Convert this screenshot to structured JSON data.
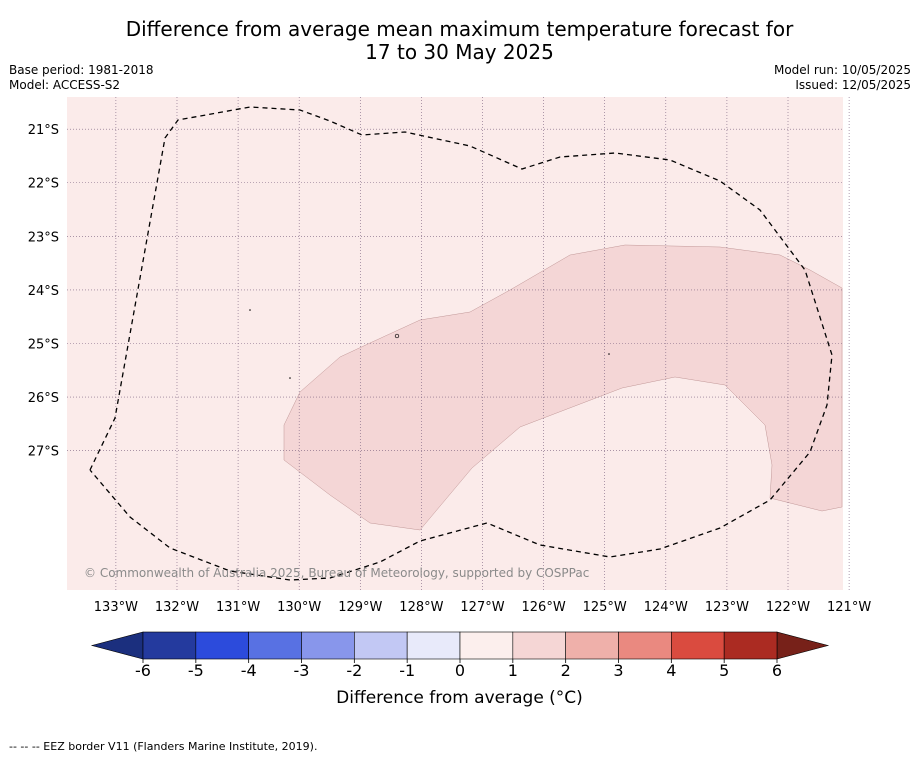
{
  "title": {
    "line1": "Difference from average mean maximum temperature forecast for",
    "line2": "17 to 30 May 2025"
  },
  "meta": {
    "base_period": "Base period: 1981-2018",
    "model": "Model: ACCESS-S2",
    "model_run": "Model run: 10/05/2025",
    "issued": "Issued: 12/05/2025"
  },
  "map": {
    "lon_range": [
      -133.8,
      -121.1
    ],
    "lat_range": [
      -29.6,
      -20.4
    ],
    "background_color": "#fbebea",
    "anomaly_band_color": "#f4d6d6",
    "lon_ticks": [
      {
        "value": -133,
        "label": "133°W"
      },
      {
        "value": -132,
        "label": "132°W"
      },
      {
        "value": -131,
        "label": "131°W"
      },
      {
        "value": -130,
        "label": "130°W"
      },
      {
        "value": -129,
        "label": "129°W"
      },
      {
        "value": -128,
        "label": "128°W"
      },
      {
        "value": -127,
        "label": "127°W"
      },
      {
        "value": -126,
        "label": "126°W"
      },
      {
        "value": -125,
        "label": "125°W"
      },
      {
        "value": -124,
        "label": "124°W"
      },
      {
        "value": -123,
        "label": "123°W"
      },
      {
        "value": -122,
        "label": "122°W"
      },
      {
        "value": -121,
        "label": "121°W"
      }
    ],
    "lat_ticks": [
      {
        "value": -21,
        "label": "21°S"
      },
      {
        "value": -22,
        "label": "22°S"
      },
      {
        "value": -23,
        "label": "23°S"
      },
      {
        "value": -24,
        "label": "24°S"
      },
      {
        "value": -25,
        "label": "25°S"
      },
      {
        "value": -26,
        "label": "26°S"
      },
      {
        "value": -27,
        "label": "27°S"
      }
    ],
    "copyright": "© Commonwealth of Australia 2025, Bureau of Meteorology, supported by COSPPac"
  },
  "colorbar": {
    "ticks": [
      "-6",
      "-5",
      "-4",
      "-3",
      "-2",
      "-1",
      "0",
      "1",
      "2",
      "3",
      "4",
      "5",
      "6"
    ],
    "colors": [
      "#243a9e",
      "#2c4bdc",
      "#5871e3",
      "#8896eb",
      "#c2c8f4",
      "#e8eafa",
      "#fcefed",
      "#f5d6d5",
      "#efb0aa",
      "#ea8980",
      "#da4b3f",
      "#ab2b22"
    ],
    "under_color": "#1b2f7e",
    "over_color": "#772119",
    "label": "Difference from average (°C)"
  },
  "footer": "--  --  -- EEZ border V11 (Flanders Marine Institute, 2019)."
}
